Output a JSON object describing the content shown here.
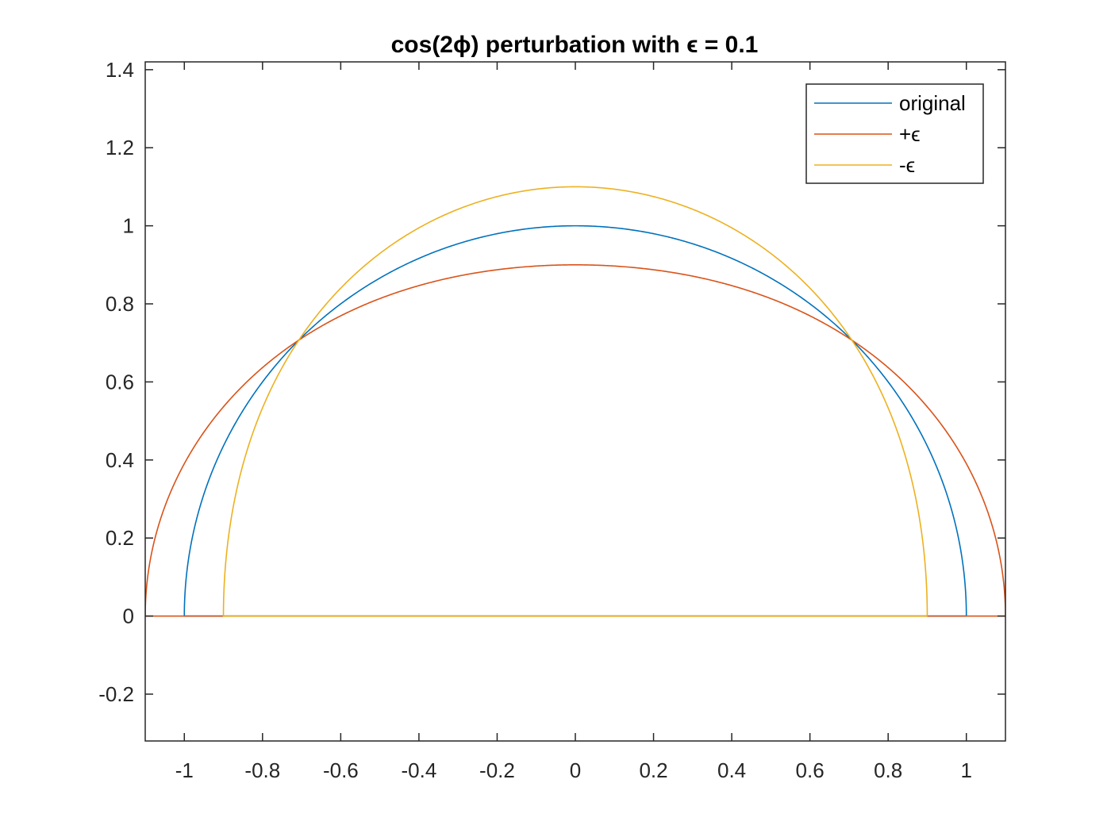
{
  "chart_data": {
    "type": "line",
    "title": "cos(2ϕ) perturbation with ϵ = 0.1",
    "xlabel": "",
    "ylabel": "",
    "xlim": [
      -1.1,
      1.1
    ],
    "ylim": [
      -0.32,
      1.42
    ],
    "xticks": [
      -1,
      -0.8,
      -0.6,
      -0.4,
      -0.2,
      0,
      0.2,
      0.4,
      0.6,
      0.8,
      1
    ],
    "xtick_labels": [
      "-1",
      "-0.8",
      "-0.6",
      "-0.4",
      "-0.2",
      "0",
      "0.2",
      "0.4",
      "0.6",
      "0.8",
      "1"
    ],
    "yticks": [
      -0.2,
      0,
      0.2,
      0.4,
      0.6,
      0.8,
      1,
      1.2,
      1.4
    ],
    "ytick_labels": [
      "-0.2",
      "0",
      "0.2",
      "0.4",
      "0.6",
      "0.8",
      "1",
      "1.2",
      "1.4"
    ],
    "grid": false,
    "legend_position": "top-right",
    "series": [
      {
        "name": "original",
        "color": "#0072BD",
        "x": [
          1.0,
          0.9848,
          0.9397,
          0.866,
          0.766,
          0.6428,
          0.5,
          0.342,
          0.1736,
          0.0,
          -0.1736,
          -0.342,
          -0.5,
          -0.6428,
          -0.766,
          -0.866,
          -0.9397,
          -0.9848,
          -1.0,
          1.0
        ],
        "y": [
          0.0,
          0.1736,
          0.342,
          0.5,
          0.6428,
          0.766,
          0.866,
          0.9397,
          0.9848,
          1.0,
          0.9848,
          0.9397,
          0.866,
          0.766,
          0.6428,
          0.5,
          0.342,
          0.1736,
          0.0,
          0.0
        ]
      },
      {
        "name": "+ϵ",
        "color": "#D95319",
        "x": [
          1.1,
          1.0746,
          1.0005,
          0.8804,
          0.7268,
          0.5656,
          0.4082,
          0.2599,
          0.1245,
          0.0,
          -0.1245,
          -0.2599,
          -0.4082,
          -0.5656,
          -0.7268,
          -0.8804,
          -1.0005,
          -1.0746,
          -1.1,
          1.1
        ],
        "y": [
          0.0,
          0.1156,
          0.2331,
          0.3467,
          0.4652,
          0.6053,
          0.7071,
          0.7814,
          0.8504,
          0.9,
          0.8504,
          0.7814,
          0.7071,
          0.6053,
          0.4652,
          0.3467,
          0.2331,
          0.1156,
          0.0,
          0.0
        ]
      },
      {
        "name": "-ϵ",
        "color": "#EDB120",
        "x": [
          0.9,
          0.8947,
          0.8774,
          0.849,
          0.8052,
          0.7198,
          0.5916,
          0.4242,
          0.2227,
          0.0,
          -0.2227,
          -0.4242,
          -0.5916,
          -0.7198,
          -0.8052,
          -0.849,
          -0.8774,
          -0.8947,
          -0.9,
          0.9
        ],
        "y": [
          0.0,
          0.1183,
          0.3194,
          0.4902,
          0.6756,
          0.8578,
          1.0247,
          1.0805,
          1.0946,
          1.1,
          1.0946,
          1.0805,
          1.0247,
          0.8578,
          0.6756,
          0.4902,
          0.3194,
          0.1183,
          0.0,
          0.0
        ]
      }
    ]
  }
}
